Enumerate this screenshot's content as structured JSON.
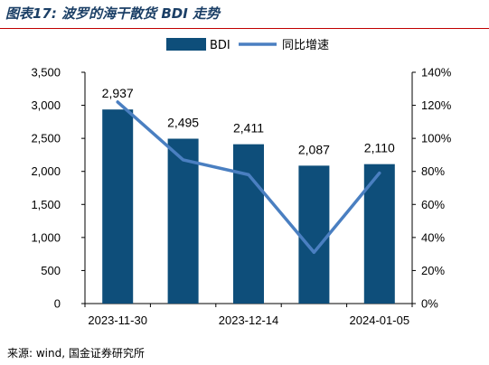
{
  "header": {
    "title": "图表17: 波罗的海干散货 BDI 走势"
  },
  "footer": {
    "source": "来源: wind, 国金证券研究所"
  },
  "colors": {
    "bar": "#0e4e7a",
    "line": "#4a7fc1",
    "rule": "#c00000",
    "axis": "#000000"
  },
  "chart_data": {
    "type": "bar",
    "title": "图表17: 波罗的海干散货 BDI 走势",
    "categories": [
      "2023-11-30",
      "",
      "2023-12-14",
      "",
      "2024-01-05"
    ],
    "x_tick_labels": [
      "2023-11-30",
      "2023-12-14",
      "2024-01-05"
    ],
    "series": [
      {
        "name": "BDI",
        "type": "bar",
        "axis": "left",
        "values": [
          2937,
          2495,
          2411,
          2087,
          2110
        ],
        "labels": [
          "2,937",
          "2,495",
          "2,411",
          "2,087",
          "2,110"
        ]
      },
      {
        "name": "同比增速",
        "type": "line",
        "axis": "right",
        "values": [
          122,
          87,
          78,
          31,
          79
        ]
      }
    ],
    "ylim": [
      0,
      3500
    ],
    "y_ticks": [
      "0",
      "500",
      "1,000",
      "1,500",
      "2,000",
      "2,500",
      "3,000",
      "3,500"
    ],
    "y2lim": [
      0,
      140
    ],
    "y2_ticks": [
      "0%",
      "20%",
      "40%",
      "60%",
      "80%",
      "100%",
      "120%",
      "140%"
    ],
    "legend": "top-center",
    "grid": false
  }
}
